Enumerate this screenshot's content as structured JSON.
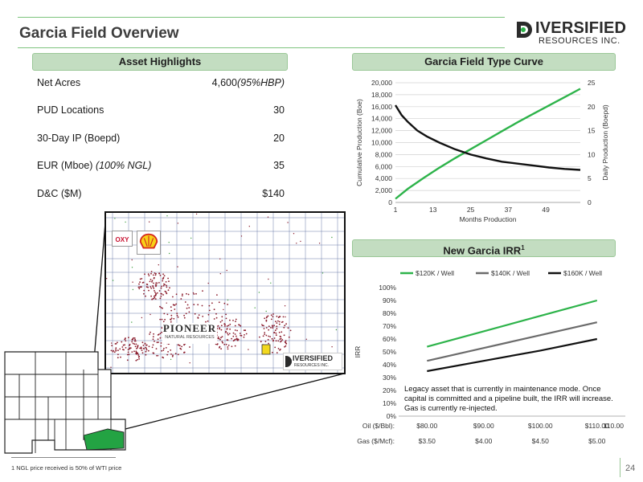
{
  "header": {
    "title": "Garcia Field Overview",
    "logo_word": "IVERSIFIED",
    "logo_sub": "RESOURCES INC."
  },
  "sections": {
    "asset_highlights": "Asset Highlights",
    "type_curve": "Garcia Field Type Curve",
    "irr": "New Garcia IRR",
    "irr_sup": "1"
  },
  "highlights": [
    {
      "label": "Net Acres",
      "label_em": "",
      "value": "4,600",
      "value_em": "(95%HBP)"
    },
    {
      "label": "PUD Locations",
      "label_em": "",
      "value": "30",
      "value_em": ""
    },
    {
      "label": "30-Day IP (Boepd)",
      "label_em": "",
      "value": "20",
      "value_em": ""
    },
    {
      "label": "EUR (Mboe) ",
      "label_em": "(100% NGL)",
      "value": "35",
      "value_em": ""
    },
    {
      "label": "D&C ($M)",
      "label_em": "",
      "value": "$140",
      "value_em": ""
    }
  ],
  "map": {
    "operators": [
      "OXY",
      "PIONEER",
      "NATURAL RESOURCES"
    ],
    "logo_word": "IVERSIFIED",
    "logo_sub": "RESOURCES INC."
  },
  "chart_data": [
    {
      "type": "line",
      "title": "Garcia Field Type Curve",
      "xlabel": "Months Production",
      "ylabel_left": "Cumulative Production (Boe)",
      "ylabel_right": "Daily Production (Boepd)",
      "x_ticks": [
        "1",
        "13",
        "25",
        "37",
        "49"
      ],
      "xlim": [
        1,
        60
      ],
      "y_left_ticks": [
        "0",
        "2,000",
        "4,000",
        "6,000",
        "8,000",
        "10,000",
        "12,000",
        "14,000",
        "16,000",
        "18,000",
        "20,000"
      ],
      "ylim_left": [
        0,
        20000
      ],
      "y_right_ticks": [
        "0",
        "5",
        "10",
        "15",
        "20",
        "25"
      ],
      "ylim_right": [
        0,
        25
      ],
      "grid": true,
      "series": [
        {
          "axis": "left",
          "color": "#2db34a",
          "x": [
            1,
            5,
            10,
            15,
            20,
            25,
            30,
            35,
            40,
            45,
            50,
            55,
            60
          ],
          "y": [
            600,
            2300,
            4100,
            5800,
            7400,
            8900,
            10400,
            11900,
            13400,
            14800,
            16200,
            17600,
            19000
          ]
        },
        {
          "axis": "right",
          "color": "#111111",
          "x": [
            1,
            3,
            5,
            8,
            11,
            15,
            20,
            25,
            30,
            35,
            40,
            45,
            50,
            55,
            60
          ],
          "y": [
            20.3,
            18.2,
            16.8,
            15.0,
            13.8,
            12.5,
            11.1,
            10.0,
            9.2,
            8.5,
            8.1,
            7.7,
            7.3,
            7.0,
            6.8
          ]
        }
      ]
    },
    {
      "type": "line",
      "title": "New Garcia IRR",
      "ylabel": "IRR",
      "categories": [
        "$80.00",
        "$90.00",
        "$100.00",
        "$110.00"
      ],
      "category_rows": [
        {
          "label": "Oil ($/Bbl):",
          "values": [
            "$80.00",
            "$90.00",
            "$100.00",
            "$110.00"
          ]
        },
        {
          "label": "Gas ($/Mcf):",
          "values": [
            "$3.50",
            "$4.00",
            "$4.50",
            "$5.00"
          ]
        }
      ],
      "extra_label": "110.00",
      "y_ticks": [
        "0%",
        "10%",
        "20%",
        "30%",
        "40%",
        "50%",
        "60%",
        "70%",
        "80%",
        "90%",
        "100%"
      ],
      "ylim": [
        0,
        100
      ],
      "legend_position": "top",
      "series": [
        {
          "name": "$120K / Well",
          "color": "#2db34a",
          "values": [
            54,
            66,
            78,
            90
          ]
        },
        {
          "name": "$140K / Well",
          "color": "#6b6b6b",
          "values": [
            43,
            53,
            63,
            73
          ]
        },
        {
          "name": "$160K / Well",
          "color": "#111111",
          "values": [
            35,
            43,
            51,
            60
          ]
        }
      ]
    }
  ],
  "irr_note": "Legacy asset that is currently in maintenance mode. Once capital is committed and a pipeline built, the IRR will increase. Gas is currently re-injected.",
  "footnote": "1 NGL price received is 50% of WTI price",
  "page_number": "24",
  "colors": {
    "accent_green": "#2db34a",
    "bar_fill": "#c3ddc1",
    "text": "#1a1a1a"
  }
}
